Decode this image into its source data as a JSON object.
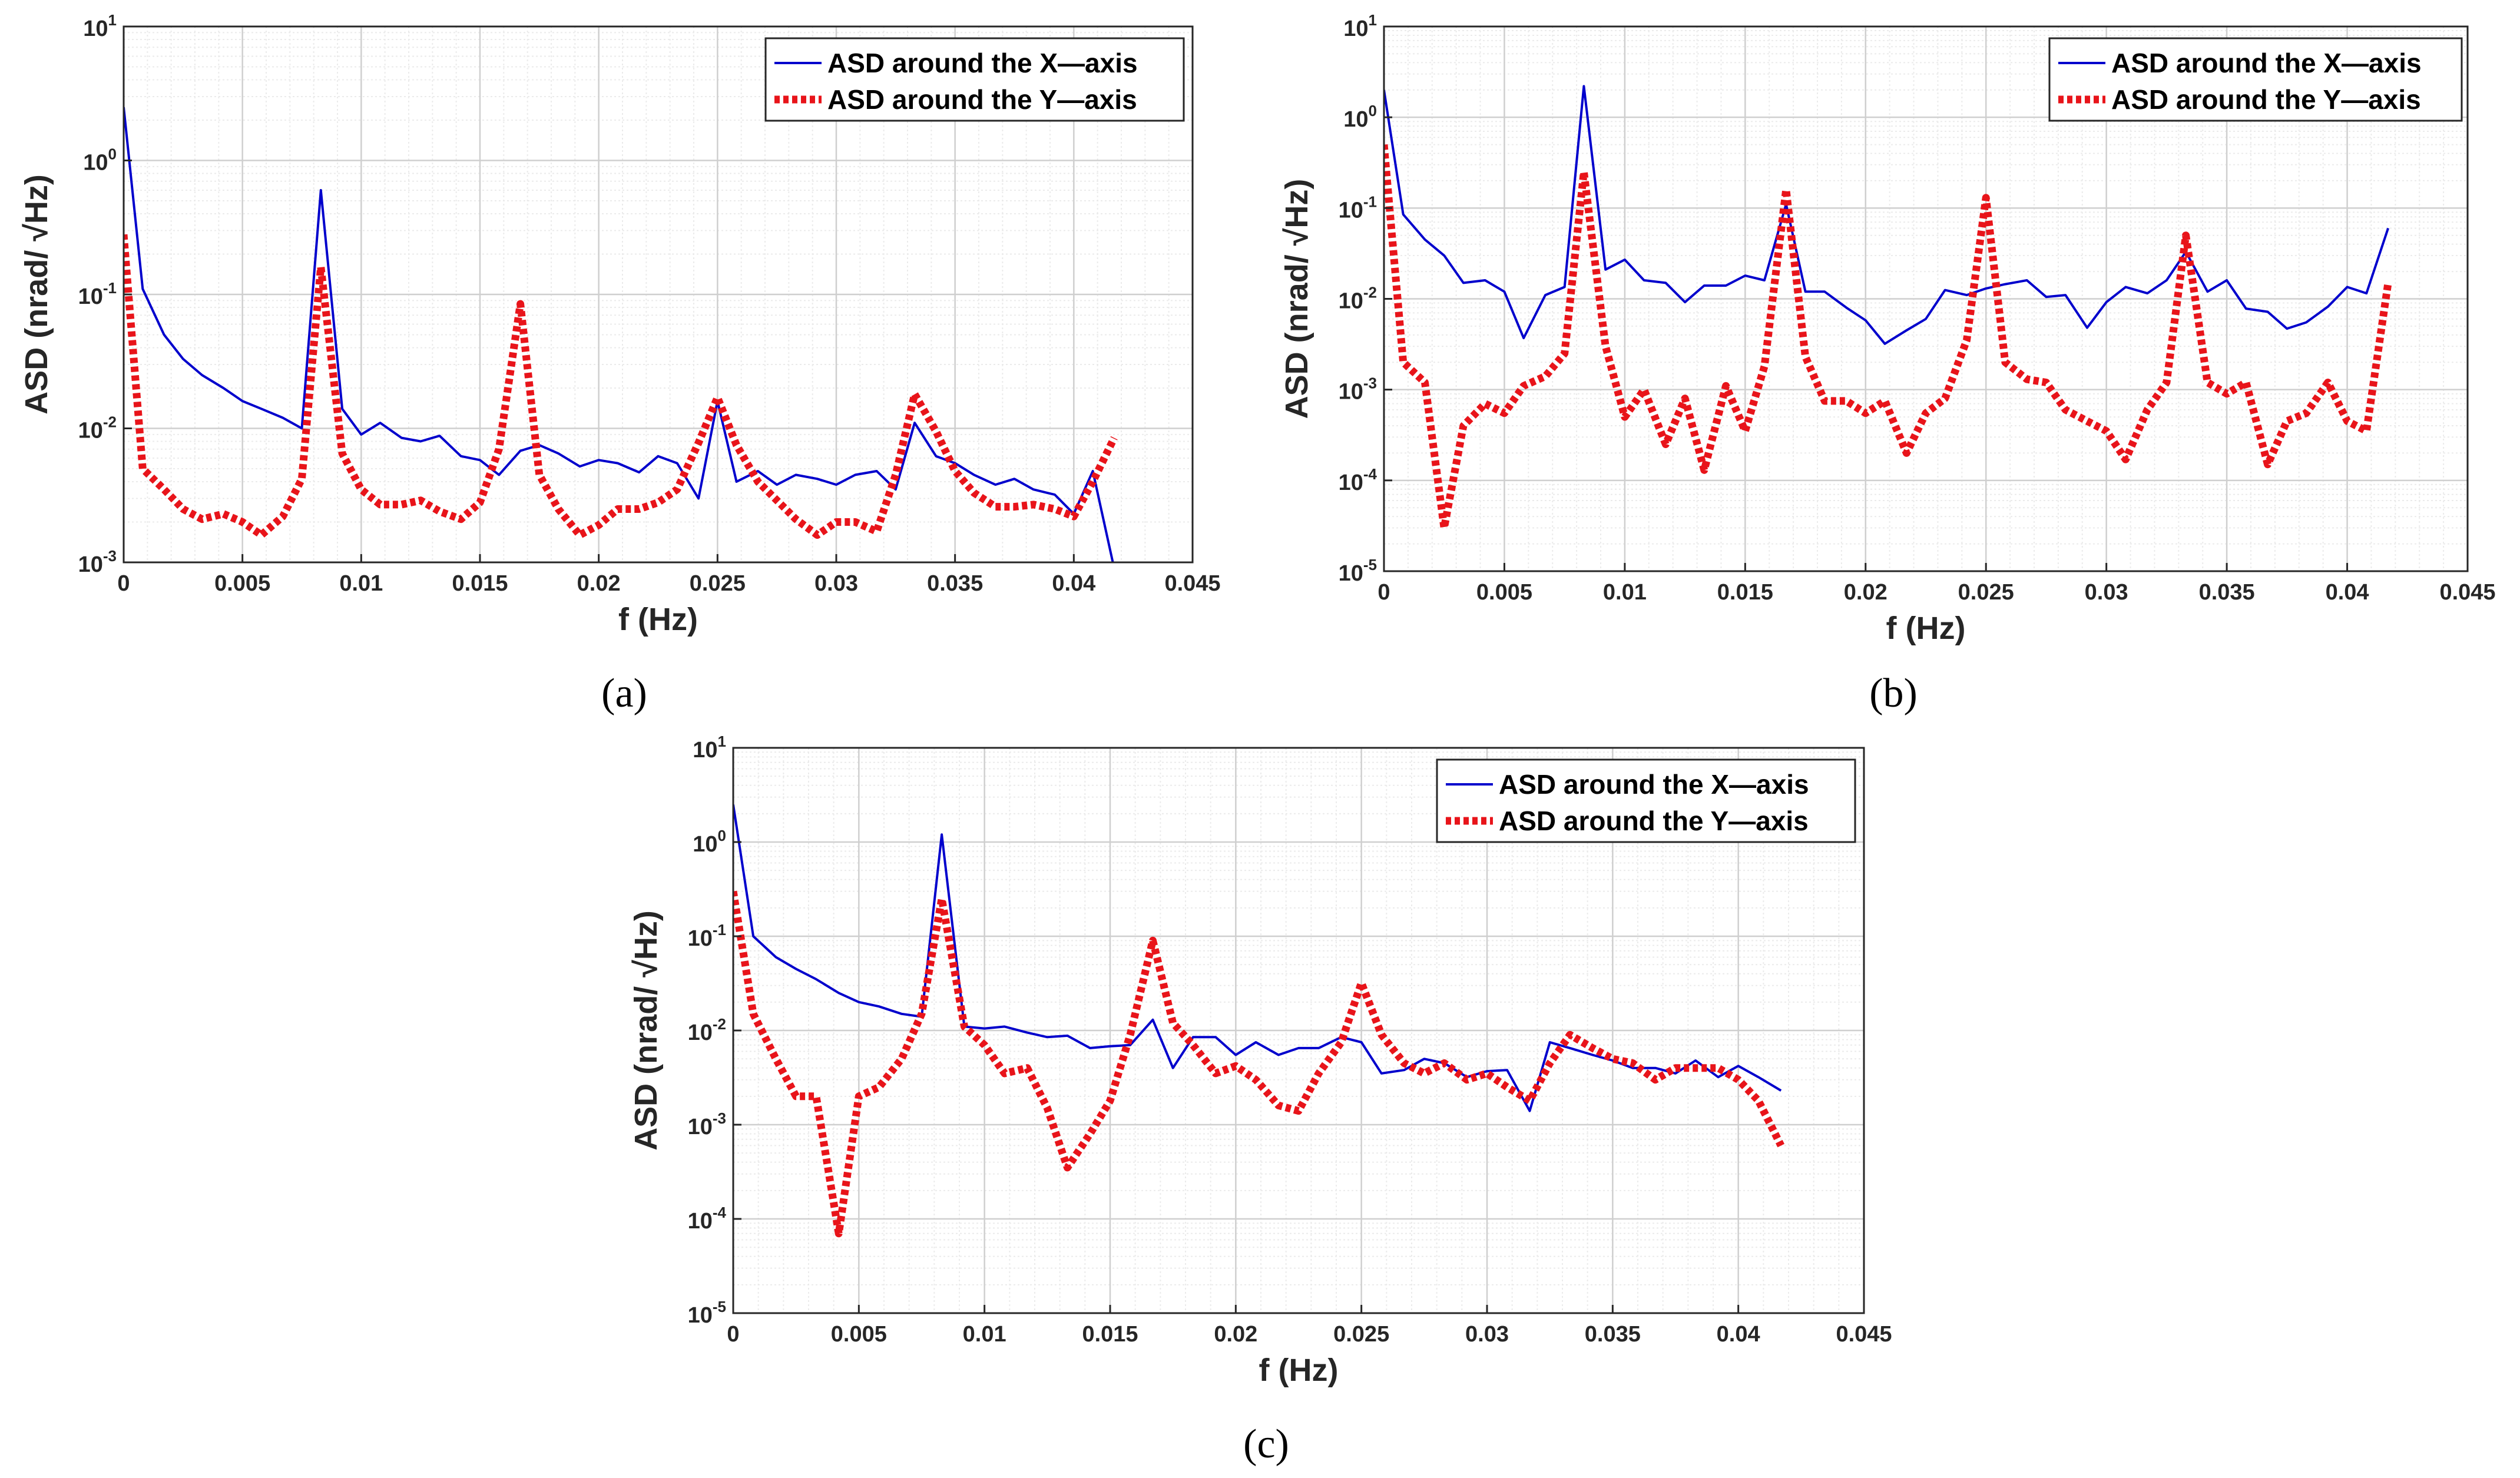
{
  "colors": {
    "x_series": "#0000cc",
    "y_series": "#e8141a",
    "grid_major": "#cfcfcf",
    "grid_minor": "#ebebeb",
    "axis": "#262626"
  },
  "chart_data": [
    {
      "type": "line",
      "panel_label": "(a)",
      "xlabel": "f (Hz)",
      "ylabel": "ASD (nrad/ √Hz)",
      "xlim": [
        0,
        0.045
      ],
      "ylim_exp": [
        -3,
        1
      ],
      "yscale": "log",
      "xticks": [
        0,
        0.005,
        0.01,
        0.015,
        0.02,
        0.025,
        0.03,
        0.035,
        0.04,
        0.045
      ],
      "xtick_labels": [
        "0",
        "0.005",
        "0.01",
        "0.015",
        "0.02",
        "0.025",
        "0.03",
        "0.035",
        "0.04",
        "0.045"
      ],
      "ytick_exponents": [
        -3,
        -2,
        -1,
        0,
        1
      ],
      "ytick_base": "10",
      "legend_location": "top-right",
      "series": [
        {
          "name": "ASD around the X—axis",
          "style": "solid",
          "x": [
            0,
            0.0008,
            0.0017,
            0.0025,
            0.0033,
            0.0042,
            0.005,
            0.0058,
            0.0067,
            0.0075,
            0.0083,
            0.0092,
            0.01,
            0.0108,
            0.0117,
            0.0125,
            0.0133,
            0.0142,
            0.015,
            0.0158,
            0.0167,
            0.0175,
            0.0183,
            0.0192,
            0.02,
            0.0208,
            0.0217,
            0.0225,
            0.0233,
            0.0242,
            0.025,
            0.0258,
            0.0267,
            0.0275,
            0.0283,
            0.0292,
            0.03,
            0.0308,
            0.0317,
            0.0325,
            0.0333,
            0.0342,
            0.035,
            0.0358,
            0.0367,
            0.0375,
            0.0383,
            0.0392,
            0.04,
            0.0408,
            0.0417
          ],
          "y": [
            2.5,
            0.11,
            0.05,
            0.033,
            0.025,
            0.02,
            0.016,
            0.014,
            0.012,
            0.01,
            0.6,
            0.014,
            0.009,
            0.011,
            0.0085,
            0.008,
            0.0088,
            0.0062,
            0.0058,
            0.0045,
            0.0068,
            0.0075,
            0.0065,
            0.0052,
            0.0058,
            0.0055,
            0.0047,
            0.0062,
            0.0055,
            0.003,
            0.016,
            0.004,
            0.0048,
            0.0038,
            0.0045,
            0.0042,
            0.0038,
            0.0045,
            0.0048,
            0.0035,
            0.011,
            0.0062,
            0.0055,
            0.0045,
            0.0038,
            0.0042,
            0.0035,
            0.0032,
            0.0023,
            0.0048,
            0.0009
          ]
        },
        {
          "name": "ASD around the Y—axis",
          "style": "dotted",
          "x": [
            0,
            0.0008,
            0.0017,
            0.0025,
            0.0033,
            0.0042,
            0.005,
            0.0058,
            0.0067,
            0.0075,
            0.0083,
            0.0092,
            0.01,
            0.0108,
            0.0117,
            0.0125,
            0.0133,
            0.0142,
            0.015,
            0.0158,
            0.0167,
            0.0175,
            0.0183,
            0.0192,
            0.02,
            0.0208,
            0.0217,
            0.0225,
            0.0233,
            0.0242,
            0.025,
            0.0258,
            0.0267,
            0.0275,
            0.0283,
            0.0292,
            0.03,
            0.0308,
            0.0317,
            0.0325,
            0.0333,
            0.0342,
            0.035,
            0.0358,
            0.0367,
            0.0375,
            0.0383,
            0.0392,
            0.04,
            0.0408,
            0.0417
          ],
          "y": [
            0.28,
            0.005,
            0.0035,
            0.0025,
            0.0021,
            0.0023,
            0.002,
            0.0016,
            0.0022,
            0.0042,
            0.16,
            0.0065,
            0.0035,
            0.0027,
            0.0027,
            0.0029,
            0.0024,
            0.0021,
            0.0028,
            0.007,
            0.085,
            0.0045,
            0.0025,
            0.0016,
            0.0019,
            0.0025,
            0.0025,
            0.0028,
            0.0035,
            0.0078,
            0.017,
            0.0075,
            0.004,
            0.0029,
            0.0021,
            0.0016,
            0.002,
            0.002,
            0.0017,
            0.0045,
            0.018,
            0.0095,
            0.0048,
            0.0033,
            0.0026,
            0.0026,
            0.0027,
            0.0025,
            0.0022,
            0.004,
            0.0085
          ]
        }
      ]
    },
    {
      "type": "line",
      "panel_label": "(b)",
      "xlabel": "f (Hz)",
      "ylabel": "ASD (nrad/ √Hz)",
      "xlim": [
        0,
        0.045
      ],
      "ylim_exp": [
        -5,
        1
      ],
      "yscale": "log",
      "xticks": [
        0,
        0.005,
        0.01,
        0.015,
        0.02,
        0.025,
        0.03,
        0.035,
        0.04,
        0.045
      ],
      "xtick_labels": [
        "0",
        "0.005",
        "0.01",
        "0.015",
        "0.02",
        "0.025",
        "0.03",
        "0.035",
        "0.04",
        "0.045"
      ],
      "ytick_exponents": [
        -5,
        -4,
        -3,
        -2,
        -1,
        0,
        1
      ],
      "ytick_base": "10",
      "legend_location": "top-right",
      "series": [
        {
          "name": "ASD around the X—axis",
          "style": "solid",
          "x": [
            0,
            0.0008,
            0.0017,
            0.0025,
            0.0033,
            0.0042,
            0.005,
            0.0058,
            0.0067,
            0.0075,
            0.0083,
            0.0092,
            0.01,
            0.0108,
            0.0117,
            0.0125,
            0.0133,
            0.0142,
            0.015,
            0.0158,
            0.0167,
            0.0175,
            0.0183,
            0.0192,
            0.02,
            0.0208,
            0.0217,
            0.0225,
            0.0233,
            0.0242,
            0.025,
            0.0258,
            0.0267,
            0.0275,
            0.0283,
            0.0292,
            0.03,
            0.0308,
            0.0317,
            0.0325,
            0.0333,
            0.0342,
            0.035,
            0.0358,
            0.0367,
            0.0375,
            0.0383,
            0.0392,
            0.04,
            0.0408,
            0.0417
          ],
          "y": [
            2.0,
            0.085,
            0.045,
            0.03,
            0.015,
            0.016,
            0.012,
            0.0037,
            0.011,
            0.0135,
            2.2,
            0.021,
            0.027,
            0.016,
            0.015,
            0.0092,
            0.014,
            0.014,
            0.018,
            0.016,
            0.11,
            0.012,
            0.012,
            0.008,
            0.0058,
            0.0032,
            0.0045,
            0.006,
            0.0125,
            0.011,
            0.013,
            0.0145,
            0.016,
            0.0105,
            0.011,
            0.0048,
            0.0092,
            0.0135,
            0.0115,
            0.016,
            0.033,
            0.012,
            0.016,
            0.0078,
            0.0072,
            0.0047,
            0.0055,
            0.0082,
            0.0135,
            0.0115,
            0.06
          ]
        },
        {
          "name": "ASD around the Y—axis",
          "style": "dotted",
          "x": [
            0,
            0.0008,
            0.0017,
            0.0025,
            0.0033,
            0.0042,
            0.005,
            0.0058,
            0.0067,
            0.0075,
            0.0083,
            0.0092,
            0.01,
            0.0108,
            0.0117,
            0.0125,
            0.0133,
            0.0142,
            0.015,
            0.0158,
            0.0167,
            0.0175,
            0.0183,
            0.0192,
            0.02,
            0.0208,
            0.0217,
            0.0225,
            0.0233,
            0.0242,
            0.025,
            0.0258,
            0.0267,
            0.0275,
            0.0283,
            0.0292,
            0.03,
            0.0308,
            0.0317,
            0.0325,
            0.0333,
            0.0342,
            0.035,
            0.0358,
            0.0367,
            0.0375,
            0.0383,
            0.0392,
            0.04,
            0.0408,
            0.0417
          ],
          "y": [
            0.5,
            0.002,
            0.0012,
            3e-05,
            0.0004,
            0.0007,
            0.00055,
            0.0011,
            0.0014,
            0.0025,
            0.25,
            0.003,
            0.0005,
            0.001,
            0.00025,
            0.0008,
            0.00013,
            0.0011,
            0.00035,
            0.0018,
            0.16,
            0.0023,
            0.00075,
            0.00075,
            0.00055,
            0.00075,
            0.0002,
            0.00055,
            0.0008,
            0.0035,
            0.13,
            0.002,
            0.0013,
            0.0012,
            0.0006,
            0.00045,
            0.00035,
            0.00017,
            0.0006,
            0.0012,
            0.05,
            0.0012,
            0.0009,
            0.0012,
            0.00015,
            0.00045,
            0.00055,
            0.0012,
            0.00045,
            0.00035,
            0.015
          ]
        }
      ]
    },
    {
      "type": "line",
      "panel_label": "(c)",
      "xlabel": "f (Hz)",
      "ylabel": "ASD (nrad/ √Hz)",
      "xlim": [
        0,
        0.045
      ],
      "ylim_exp": [
        -5,
        1
      ],
      "yscale": "log",
      "xticks": [
        0,
        0.005,
        0.01,
        0.015,
        0.02,
        0.025,
        0.03,
        0.035,
        0.04,
        0.045
      ],
      "xtick_labels": [
        "0",
        "0.005",
        "0.01",
        "0.015",
        "0.02",
        "0.025",
        "0.03",
        "0.035",
        "0.04",
        "0.045"
      ],
      "ytick_exponents": [
        -5,
        -4,
        -3,
        -2,
        -1,
        0,
        1
      ],
      "ytick_base": "10",
      "legend_location": "top-right",
      "series": [
        {
          "name": "ASD around the X—axis",
          "style": "solid",
          "x": [
            0,
            0.0008,
            0.0017,
            0.0025,
            0.0033,
            0.0042,
            0.005,
            0.0058,
            0.0067,
            0.0075,
            0.0083,
            0.0092,
            0.01,
            0.0108,
            0.0117,
            0.0125,
            0.0133,
            0.0142,
            0.015,
            0.0158,
            0.0167,
            0.0175,
            0.0183,
            0.0192,
            0.02,
            0.0208,
            0.0217,
            0.0225,
            0.0233,
            0.0242,
            0.025,
            0.0258,
            0.0267,
            0.0275,
            0.0283,
            0.0292,
            0.03,
            0.0308,
            0.0317,
            0.0325,
            0.0333,
            0.0342,
            0.035,
            0.0358,
            0.0367,
            0.0375,
            0.0383,
            0.0392,
            0.04,
            0.0408,
            0.0417
          ],
          "y": [
            2.5,
            0.1,
            0.06,
            0.045,
            0.035,
            0.025,
            0.02,
            0.018,
            0.015,
            0.014,
            1.2,
            0.011,
            0.0105,
            0.011,
            0.0095,
            0.0085,
            0.0088,
            0.0065,
            0.0068,
            0.007,
            0.013,
            0.004,
            0.0085,
            0.0085,
            0.0055,
            0.0075,
            0.0055,
            0.0065,
            0.0065,
            0.0085,
            0.0075,
            0.0035,
            0.0038,
            0.005,
            0.0045,
            0.0032,
            0.0037,
            0.0038,
            0.0014,
            0.0075,
            0.0065,
            0.0055,
            0.0048,
            0.004,
            0.004,
            0.0035,
            0.0048,
            0.0032,
            0.0042,
            0.0032,
            0.0023
          ]
        },
        {
          "name": "ASD around the Y—axis",
          "style": "dotted",
          "x": [
            0,
            0.0008,
            0.0017,
            0.0025,
            0.0033,
            0.0042,
            0.005,
            0.0058,
            0.0067,
            0.0075,
            0.0083,
            0.0092,
            0.01,
            0.0108,
            0.0117,
            0.0125,
            0.0133,
            0.0142,
            0.015,
            0.0158,
            0.0167,
            0.0175,
            0.0183,
            0.0192,
            0.02,
            0.0208,
            0.0217,
            0.0225,
            0.0233,
            0.0242,
            0.025,
            0.0258,
            0.0267,
            0.0275,
            0.0283,
            0.0292,
            0.03,
            0.0308,
            0.0317,
            0.0325,
            0.0333,
            0.0342,
            0.035,
            0.0358,
            0.0367,
            0.0375,
            0.0383,
            0.0392,
            0.04,
            0.0408,
            0.0417
          ],
          "y": [
            0.3,
            0.015,
            0.005,
            0.002,
            0.002,
            7e-05,
            0.002,
            0.0025,
            0.005,
            0.015,
            0.25,
            0.011,
            0.007,
            0.0035,
            0.004,
            0.0015,
            0.00035,
            0.0008,
            0.0018,
            0.009,
            0.09,
            0.012,
            0.007,
            0.0035,
            0.0042,
            0.003,
            0.0016,
            0.0014,
            0.0035,
            0.0075,
            0.032,
            0.009,
            0.0045,
            0.0035,
            0.0045,
            0.003,
            0.0035,
            0.0025,
            0.0018,
            0.0045,
            0.009,
            0.0065,
            0.005,
            0.0045,
            0.003,
            0.004,
            0.004,
            0.004,
            0.003,
            0.0018,
            0.0006
          ]
        }
      ]
    }
  ]
}
